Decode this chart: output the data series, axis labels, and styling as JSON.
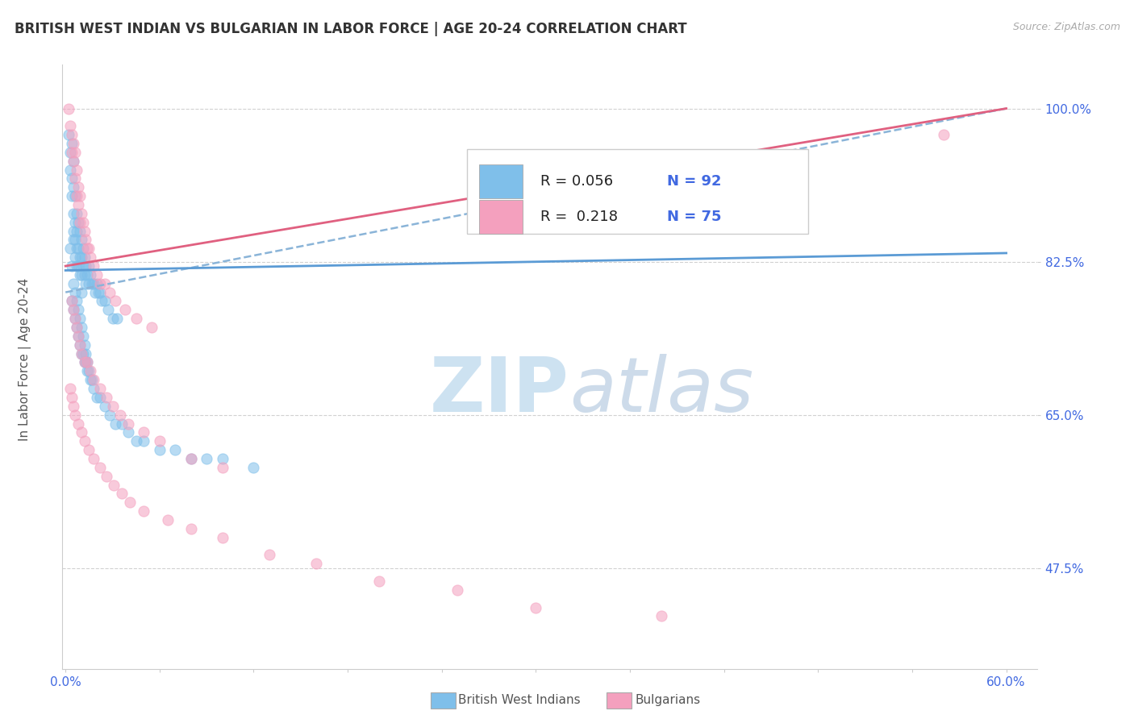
{
  "title": "BRITISH WEST INDIAN VS BULGARIAN IN LABOR FORCE | AGE 20-24 CORRELATION CHART",
  "source": "Source: ZipAtlas.com",
  "ylabel": "In Labor Force | Age 20-24",
  "ytick_labels": [
    "47.5%",
    "65.0%",
    "82.5%",
    "100.0%"
  ],
  "ytick_values": [
    0.475,
    0.65,
    0.825,
    1.0
  ],
  "xmin": 0.0,
  "xmax": 0.6,
  "ymin": 0.36,
  "ymax": 1.05,
  "legend_r1": "R = 0.056",
  "legend_n1": "N = 92",
  "legend_r2": "R =  0.218",
  "legend_n2": "N = 75",
  "color_blue": "#7fbfea",
  "color_pink": "#f4a0be",
  "color_blue_line": "#5b9bd5",
  "color_pink_line": "#e06080",
  "color_dashed": "#8ab4d8",
  "color_axis_labels": "#4169E1",
  "watermark_zip_color": "#c8dff0",
  "watermark_atlas_color": "#c8d8e8",
  "bwi_x": [
    0.002,
    0.003,
    0.003,
    0.004,
    0.004,
    0.004,
    0.005,
    0.005,
    0.005,
    0.005,
    0.005,
    0.006,
    0.006,
    0.006,
    0.006,
    0.007,
    0.007,
    0.007,
    0.007,
    0.008,
    0.008,
    0.008,
    0.009,
    0.009,
    0.009,
    0.01,
    0.01,
    0.01,
    0.01,
    0.011,
    0.011,
    0.012,
    0.012,
    0.013,
    0.013,
    0.014,
    0.015,
    0.015,
    0.016,
    0.017,
    0.018,
    0.019,
    0.02,
    0.021,
    0.022,
    0.023,
    0.025,
    0.027,
    0.03,
    0.033,
    0.004,
    0.005,
    0.006,
    0.007,
    0.008,
    0.009,
    0.01,
    0.011,
    0.012,
    0.013,
    0.014,
    0.015,
    0.016,
    0.017,
    0.018,
    0.02,
    0.022,
    0.025,
    0.028,
    0.032,
    0.036,
    0.04,
    0.045,
    0.05,
    0.06,
    0.07,
    0.08,
    0.09,
    0.1,
    0.12,
    0.003,
    0.004,
    0.005,
    0.006,
    0.007,
    0.008,
    0.009,
    0.01,
    0.011,
    0.012,
    0.013,
    0.014
  ],
  "bwi_y": [
    0.97,
    0.95,
    0.93,
    0.96,
    0.92,
    0.9,
    0.94,
    0.91,
    0.88,
    0.86,
    0.85,
    0.9,
    0.87,
    0.85,
    0.83,
    0.88,
    0.86,
    0.84,
    0.82,
    0.87,
    0.84,
    0.82,
    0.86,
    0.83,
    0.81,
    0.85,
    0.83,
    0.81,
    0.79,
    0.84,
    0.82,
    0.83,
    0.81,
    0.82,
    0.8,
    0.81,
    0.82,
    0.8,
    0.81,
    0.8,
    0.8,
    0.79,
    0.8,
    0.79,
    0.79,
    0.78,
    0.78,
    0.77,
    0.76,
    0.76,
    0.78,
    0.77,
    0.76,
    0.75,
    0.74,
    0.73,
    0.72,
    0.72,
    0.71,
    0.71,
    0.7,
    0.7,
    0.69,
    0.69,
    0.68,
    0.67,
    0.67,
    0.66,
    0.65,
    0.64,
    0.64,
    0.63,
    0.62,
    0.62,
    0.61,
    0.61,
    0.6,
    0.6,
    0.6,
    0.59,
    0.84,
    0.82,
    0.8,
    0.79,
    0.78,
    0.77,
    0.76,
    0.75,
    0.74,
    0.73,
    0.72,
    0.71
  ],
  "bulg_x": [
    0.002,
    0.003,
    0.004,
    0.004,
    0.005,
    0.005,
    0.006,
    0.006,
    0.007,
    0.007,
    0.008,
    0.008,
    0.009,
    0.009,
    0.01,
    0.011,
    0.012,
    0.013,
    0.014,
    0.015,
    0.016,
    0.018,
    0.02,
    0.022,
    0.025,
    0.028,
    0.032,
    0.038,
    0.045,
    0.055,
    0.004,
    0.005,
    0.006,
    0.007,
    0.008,
    0.009,
    0.01,
    0.012,
    0.014,
    0.016,
    0.018,
    0.022,
    0.026,
    0.03,
    0.035,
    0.04,
    0.05,
    0.06,
    0.08,
    0.1,
    0.003,
    0.004,
    0.005,
    0.006,
    0.008,
    0.01,
    0.012,
    0.015,
    0.018,
    0.022,
    0.026,
    0.031,
    0.036,
    0.041,
    0.05,
    0.065,
    0.08,
    0.1,
    0.13,
    0.16,
    0.2,
    0.25,
    0.3,
    0.38,
    0.56
  ],
  "bulg_y": [
    1.0,
    0.98,
    0.97,
    0.95,
    0.96,
    0.94,
    0.95,
    0.92,
    0.93,
    0.9,
    0.91,
    0.89,
    0.9,
    0.87,
    0.88,
    0.87,
    0.86,
    0.85,
    0.84,
    0.84,
    0.83,
    0.82,
    0.81,
    0.8,
    0.8,
    0.79,
    0.78,
    0.77,
    0.76,
    0.75,
    0.78,
    0.77,
    0.76,
    0.75,
    0.74,
    0.73,
    0.72,
    0.71,
    0.71,
    0.7,
    0.69,
    0.68,
    0.67,
    0.66,
    0.65,
    0.64,
    0.63,
    0.62,
    0.6,
    0.59,
    0.68,
    0.67,
    0.66,
    0.65,
    0.64,
    0.63,
    0.62,
    0.61,
    0.6,
    0.59,
    0.58,
    0.57,
    0.56,
    0.55,
    0.54,
    0.53,
    0.52,
    0.51,
    0.49,
    0.48,
    0.46,
    0.45,
    0.43,
    0.42,
    0.97
  ]
}
